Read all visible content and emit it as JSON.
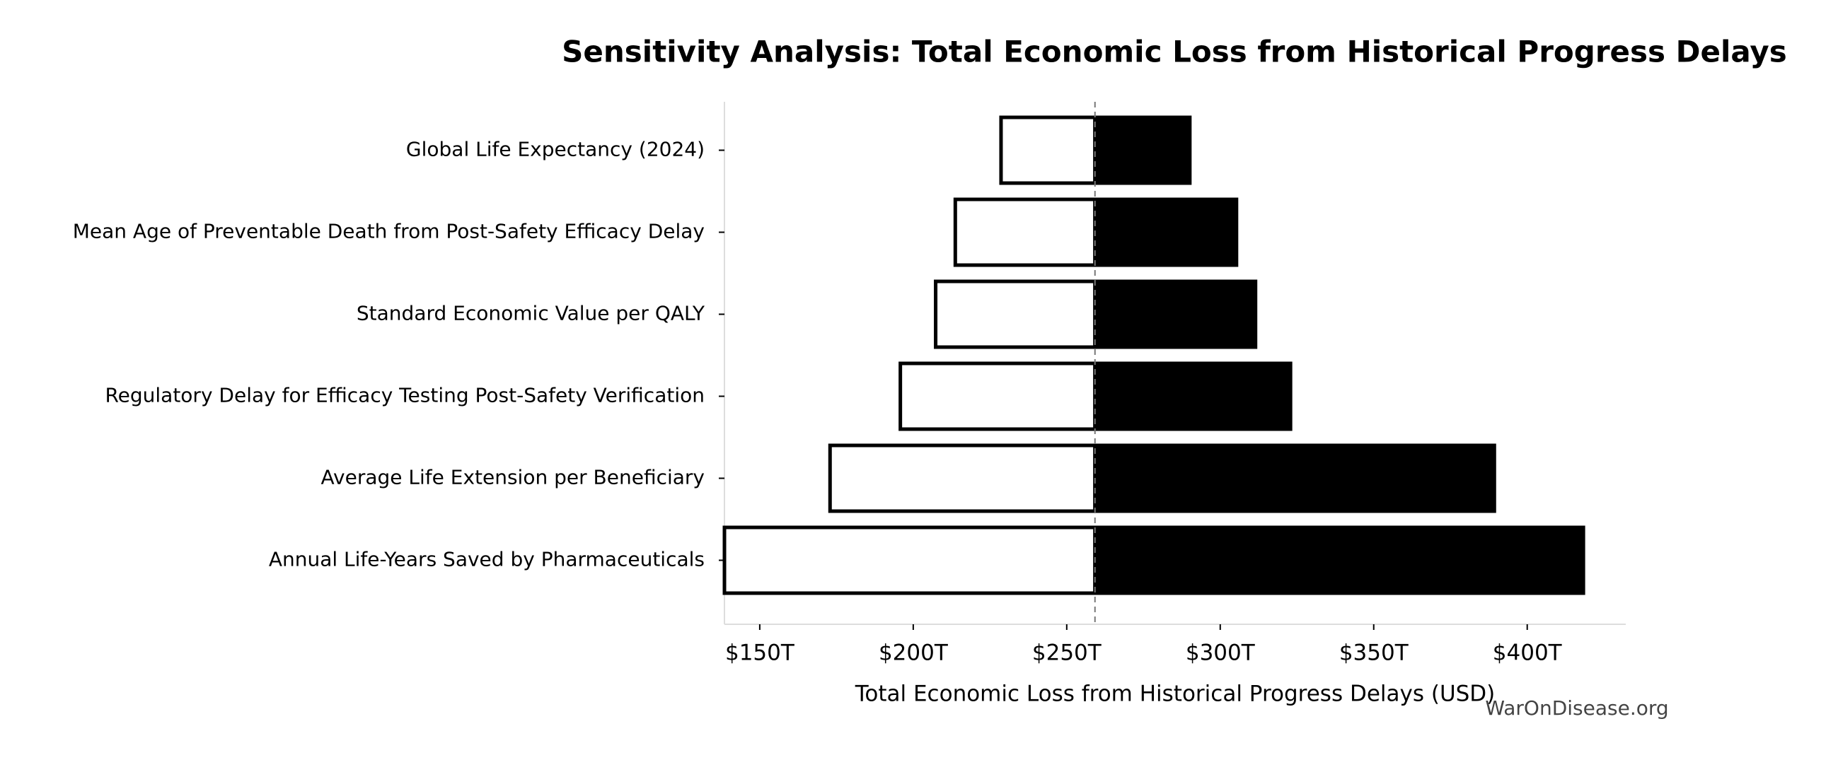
{
  "chart_data": {
    "type": "tornado",
    "title": "Sensitivity Analysis: Total Economic Loss from Historical Progress Delays",
    "xlabel": "Total Economic Loss from Historical Progress Delays (USD)",
    "watermark": "WarOnDisease.org",
    "categories": [
      "Global Life Expectancy (2024)",
      "Mean Age of Preventable Death from Post-Safety Efficacy Delay",
      "Standard Economic Value per QALY",
      "Regulatory Delay for Efficacy Testing Post-Safety Verification",
      "Average Life Extension per Beneficiary",
      "Annual Life-Years Saved by Pharmaceuticals"
    ],
    "baseline": 259.2,
    "series": [
      {
        "color": "#ffffff",
        "values": [
          228.6,
          213.7,
          207.3,
          195.8,
          172.9,
          138.5
        ]
      },
      {
        "color": "#000000",
        "values": [
          290.1,
          305.3,
          311.5,
          322.9,
          389.3,
          418.3
        ]
      }
    ],
    "xlim": [
      138.5,
      432.1
    ],
    "xticks": [
      {
        "value": 150,
        "label": "$150T"
      },
      {
        "value": 200,
        "label": "$200T"
      },
      {
        "value": 250,
        "label": "$250T"
      },
      {
        "value": 300,
        "label": "$300T"
      },
      {
        "value": 350,
        "label": "$350T"
      },
      {
        "value": 400,
        "label": "$400T"
      }
    ]
  }
}
